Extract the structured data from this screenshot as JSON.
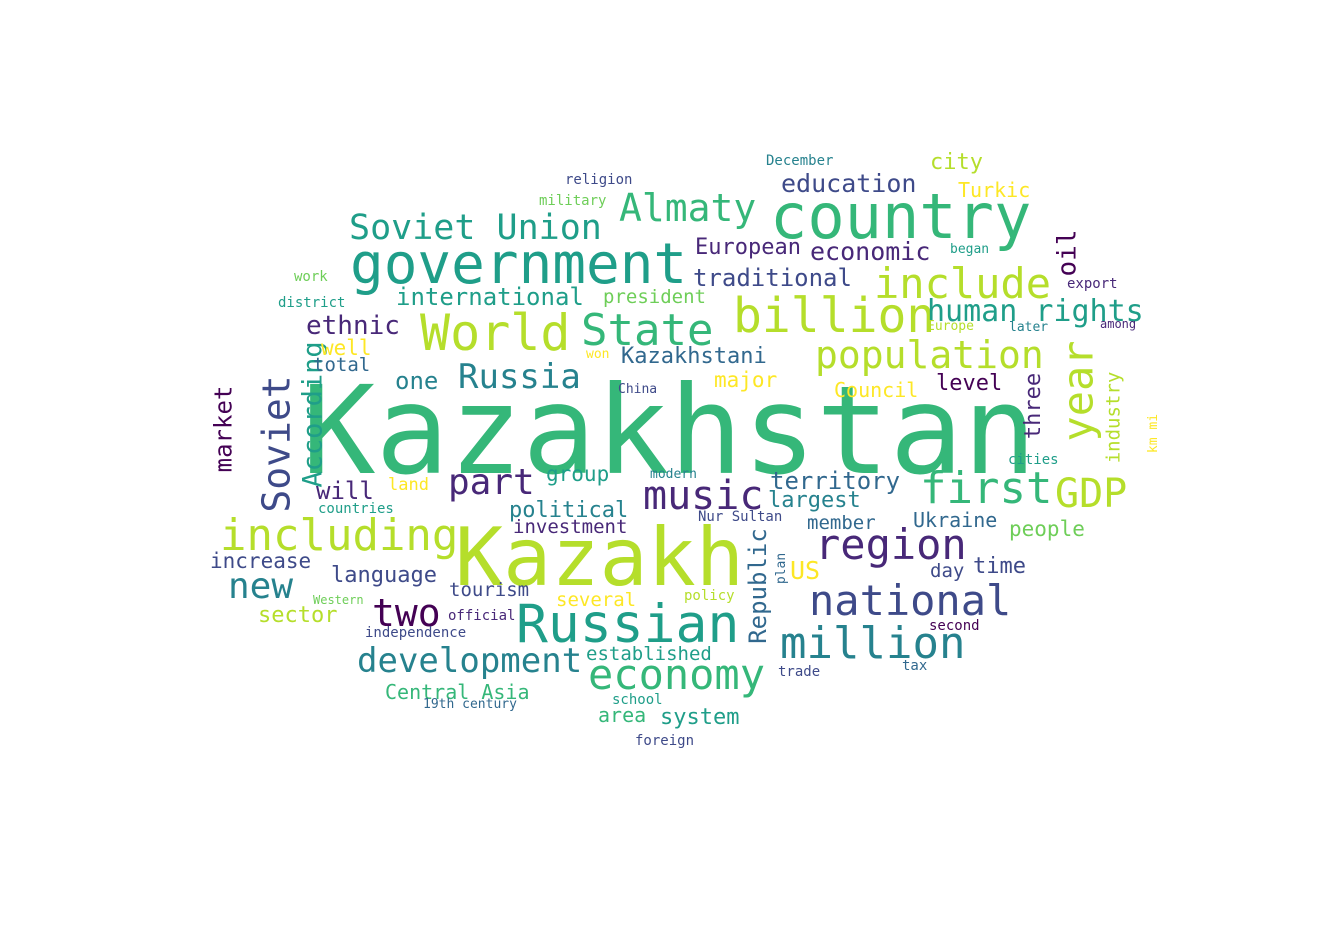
{
  "palette": {
    "p0": "#440154",
    "p1": "#482878",
    "p2": "#3e4a89",
    "p3": "#31688e",
    "p4": "#26828e",
    "p5": "#1f9e89",
    "p6": "#35b779",
    "p7": "#6ece58",
    "p8": "#b5de2b",
    "p9": "#fde725"
  },
  "words": [
    "Kazakhstan",
    "Kazakh",
    "country",
    "government",
    "Russian",
    "World",
    "billion",
    "State",
    "year",
    "include",
    "including",
    "first",
    "GDP",
    "region",
    "national",
    "million",
    "population",
    "economy",
    "music",
    "Soviet",
    "Almaty",
    "Soviet Union",
    "part",
    "Russia",
    "development",
    "two",
    "new",
    "human rights",
    "education",
    "oil",
    "economic",
    "traditional",
    "European",
    "international",
    "ethnic",
    "Kazakhstani",
    "one",
    "city",
    "Turkic",
    "president",
    "territory",
    "largest",
    "political",
    "investment",
    "Republic",
    "According",
    "market",
    "three",
    "industry",
    "level",
    "major",
    "Council",
    "well",
    "total",
    "will",
    "group",
    "Ukraine",
    "member",
    "people",
    "time",
    "day",
    "US",
    "increase",
    "language",
    "sector",
    "tourism",
    "several",
    "Central Asia",
    "established",
    "area",
    "system",
    "December",
    "religion",
    "military",
    "began",
    "export",
    "work",
    "district",
    "Europe",
    "later",
    "among",
    "won",
    "China",
    "km mi",
    "cities",
    "land",
    "countries",
    "modern",
    "Nur Sultan",
    "plan",
    "policy",
    "Western",
    "official",
    "independence",
    "second",
    "trade",
    "tax",
    "school",
    "19th century",
    "foreign"
  ]
}
